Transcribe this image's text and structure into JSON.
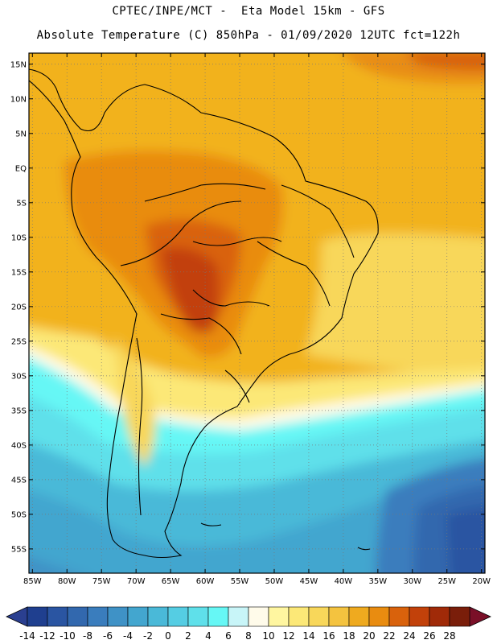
{
  "header": {
    "title_line1": "CPTEC/INPE/MCT -  Eta Model 15km - GFS",
    "title_line2": "Absolute Temperature (C) 850hPa - 01/09/2020 12UTC fct=122h"
  },
  "map": {
    "lat_ticks": [
      "15N",
      "10N",
      "5N",
      "EQ",
      "5S",
      "10S",
      "15S",
      "20S",
      "25S",
      "30S",
      "35S",
      "40S",
      "45S",
      "50S",
      "55S"
    ],
    "lat_values": [
      15,
      10,
      5,
      0,
      -5,
      -10,
      -15,
      -20,
      -25,
      -30,
      -35,
      -40,
      -45,
      -50,
      -55
    ],
    "lon_ticks": [
      "85W",
      "80W",
      "75W",
      "70W",
      "65W",
      "60W",
      "55W",
      "50W",
      "45W",
      "40W",
      "35W",
      "30W",
      "25W",
      "20W"
    ],
    "lon_values": [
      -85,
      -80,
      -75,
      -70,
      -65,
      -60,
      -55,
      -50,
      -45,
      -40,
      -35,
      -30,
      -25,
      -20
    ],
    "lat_range": [
      16.6,
      -58.5
    ],
    "lon_range": [
      -85.5,
      -19.5
    ],
    "field": "Absolute Temperature (C) at 850hPa"
  },
  "colorbar": {
    "labels": [
      "-14",
      "-12",
      "-10",
      "-8",
      "-6",
      "-4",
      "-2",
      "0",
      "2",
      "4",
      "6",
      "8",
      "10",
      "12",
      "14",
      "16",
      "18",
      "20",
      "22",
      "24",
      "26",
      "28"
    ],
    "colors": [
      "#1f3f8f",
      "#2a55a2",
      "#3268ae",
      "#3a7dbd",
      "#3f92c6",
      "#43a6cf",
      "#4ab9d8",
      "#55cde3",
      "#5fe0ea",
      "#66f7f5",
      "#c8f5f8",
      "#fffbea",
      "#fff6a0",
      "#fce877",
      "#f8d75a",
      "#f4c33f",
      "#efaa1f",
      "#e98c10",
      "#d9620c",
      "#c2410a",
      "#a02a08",
      "#7a1e0a"
    ],
    "under_color": "#2a3f90",
    "over_color": "#7a0f28"
  }
}
